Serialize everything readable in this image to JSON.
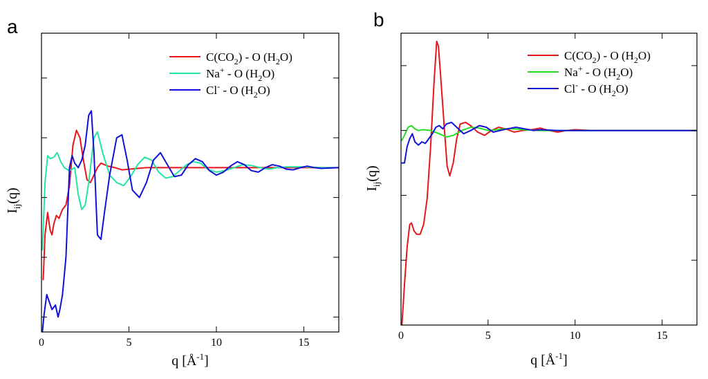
{
  "colors": {
    "red": "#e8141c",
    "green_a": "#22e6a0",
    "green_b": "#22dd22",
    "blue": "#1010d8",
    "axis": "#000000"
  },
  "chart_data": [
    {
      "panel_label": "a",
      "type": "line",
      "xlabel": {
        "main": "q [Å",
        "sup": "-1",
        "close": "]"
      },
      "ylabel": {
        "main": "I",
        "sub": "ij",
        "tail": "(q)"
      },
      "xlim": [
        0,
        17
      ],
      "ylim": [
        -1.1,
        0.9
      ],
      "xticks": [
        0,
        5,
        10,
        15
      ],
      "xtick_labels": [
        "0",
        "5",
        "10",
        "15"
      ],
      "yticks": [
        -1.0,
        -0.6,
        -0.2,
        0.2,
        0.6
      ],
      "grid": false,
      "legend_position": "top-right",
      "series": [
        {
          "name": "C(CO2) - O (H2O)",
          "legend": [
            [
              "C(CO",
              ""
            ],
            [
              "2",
              "sub"
            ],
            [
              ") - O (H",
              ""
            ],
            [
              "2",
              "sub"
            ],
            [
              "O)",
              ""
            ]
          ],
          "color": "#e8141c",
          "points": [
            [
              0.1,
              -0.75
            ],
            [
              0.2,
              -0.45
            ],
            [
              0.35,
              -0.3
            ],
            [
              0.5,
              -0.42
            ],
            [
              0.6,
              -0.45
            ],
            [
              0.7,
              -0.38
            ],
            [
              0.85,
              -0.32
            ],
            [
              1.0,
              -0.34
            ],
            [
              1.2,
              -0.28
            ],
            [
              1.4,
              -0.25
            ],
            [
              1.6,
              -0.12
            ],
            [
              1.8,
              0.15
            ],
            [
              2.0,
              0.25
            ],
            [
              2.2,
              0.2
            ],
            [
              2.4,
              0.05
            ],
            [
              2.6,
              -0.08
            ],
            [
              2.8,
              -0.1
            ],
            [
              3.0,
              -0.05
            ],
            [
              3.2,
              0.0
            ],
            [
              3.4,
              0.03
            ],
            [
              3.6,
              0.02
            ],
            [
              3.8,
              0.01
            ],
            [
              4.2,
              0.0
            ],
            [
              4.6,
              -0.015
            ],
            [
              5.0,
              -0.01
            ],
            [
              6.0,
              0.0
            ],
            [
              8.0,
              0.0
            ],
            [
              10.0,
              0.0
            ],
            [
              12.0,
              0.0
            ],
            [
              17.0,
              0.0
            ]
          ]
        },
        {
          "name": "Na+ - O (H2O)",
          "legend": [
            [
              "Na",
              ""
            ],
            [
              "+",
              "sup"
            ],
            [
              " - O (H",
              ""
            ],
            [
              "2",
              "sub"
            ],
            [
              "O)",
              ""
            ]
          ],
          "color": "#22e6a0",
          "points": [
            [
              0.05,
              -0.55
            ],
            [
              0.2,
              -0.1
            ],
            [
              0.35,
              0.08
            ],
            [
              0.5,
              0.06
            ],
            [
              0.7,
              0.07
            ],
            [
              0.9,
              0.1
            ],
            [
              1.1,
              0.04
            ],
            [
              1.3,
              0.0
            ],
            [
              1.6,
              -0.02
            ],
            [
              1.9,
              0.0
            ],
            [
              2.1,
              -0.18
            ],
            [
              2.3,
              -0.28
            ],
            [
              2.5,
              -0.25
            ],
            [
              2.7,
              -0.1
            ],
            [
              3.0,
              0.2
            ],
            [
              3.2,
              0.24
            ],
            [
              3.5,
              0.1
            ],
            [
              3.9,
              -0.05
            ],
            [
              4.3,
              -0.1
            ],
            [
              4.7,
              -0.12
            ],
            [
              5.1,
              -0.06
            ],
            [
              5.5,
              0.02
            ],
            [
              5.9,
              0.07
            ],
            [
              6.3,
              0.05
            ],
            [
              6.7,
              -0.03
            ],
            [
              7.1,
              -0.07
            ],
            [
              7.5,
              -0.06
            ],
            [
              7.9,
              -0.02
            ],
            [
              8.3,
              0.02
            ],
            [
              8.7,
              0.04
            ],
            [
              9.1,
              0.03
            ],
            [
              9.5,
              -0.01
            ],
            [
              10.0,
              -0.03
            ],
            [
              10.5,
              -0.02
            ],
            [
              11.0,
              0.0
            ],
            [
              11.5,
              0.02
            ],
            [
              12.0,
              0.015
            ],
            [
              12.5,
              0.0
            ],
            [
              13.0,
              -0.01
            ],
            [
              13.5,
              0.0
            ],
            [
              14.0,
              0.005
            ],
            [
              15.0,
              0.005
            ],
            [
              16.0,
              0.0
            ],
            [
              17.0,
              0.0
            ]
          ]
        },
        {
          "name": "Cl- - O (H2O)",
          "legend": [
            [
              "Cl",
              ""
            ],
            [
              "-",
              "sup"
            ],
            [
              " - O (H",
              ""
            ],
            [
              "2",
              "sub"
            ],
            [
              "O)",
              ""
            ]
          ],
          "color": "#1010d8",
          "points": [
            [
              0.05,
              -1.1
            ],
            [
              0.15,
              -0.98
            ],
            [
              0.3,
              -0.85
            ],
            [
              0.45,
              -0.9
            ],
            [
              0.6,
              -0.95
            ],
            [
              0.8,
              -0.92
            ],
            [
              0.95,
              -1.0
            ],
            [
              1.05,
              -0.95
            ],
            [
              1.2,
              -0.85
            ],
            [
              1.4,
              -0.6
            ],
            [
              1.6,
              0.0
            ],
            [
              1.75,
              0.08
            ],
            [
              1.9,
              0.03
            ],
            [
              2.1,
              0.0
            ],
            [
              2.3,
              0.05
            ],
            [
              2.5,
              0.15
            ],
            [
              2.7,
              0.35
            ],
            [
              2.85,
              0.38
            ],
            [
              3.0,
              0.1
            ],
            [
              3.2,
              -0.45
            ],
            [
              3.4,
              -0.48
            ],
            [
              3.6,
              -0.3
            ],
            [
              3.9,
              -0.05
            ],
            [
              4.3,
              0.2
            ],
            [
              4.6,
              0.22
            ],
            [
              4.9,
              0.05
            ],
            [
              5.2,
              -0.15
            ],
            [
              5.6,
              -0.2
            ],
            [
              6.0,
              -0.1
            ],
            [
              6.4,
              0.05
            ],
            [
              6.8,
              0.1
            ],
            [
              7.2,
              0.02
            ],
            [
              7.6,
              -0.06
            ],
            [
              8.0,
              -0.05
            ],
            [
              8.4,
              0.02
            ],
            [
              8.8,
              0.06
            ],
            [
              9.2,
              0.04
            ],
            [
              9.6,
              -0.02
            ],
            [
              10.0,
              -0.05
            ],
            [
              10.4,
              -0.03
            ],
            [
              10.8,
              0.01
            ],
            [
              11.2,
              0.04
            ],
            [
              11.6,
              0.02
            ],
            [
              12.0,
              -0.02
            ],
            [
              12.4,
              -0.03
            ],
            [
              12.8,
              0.0
            ],
            [
              13.2,
              0.02
            ],
            [
              13.6,
              0.01
            ],
            [
              14.0,
              -0.01
            ],
            [
              14.4,
              -0.015
            ],
            [
              14.8,
              0.0
            ],
            [
              15.2,
              0.01
            ],
            [
              15.6,
              0.0
            ],
            [
              16.0,
              -0.005
            ],
            [
              17.0,
              0.0
            ]
          ]
        }
      ]
    },
    {
      "panel_label": "b",
      "type": "line",
      "xlabel": {
        "main": "q [Å",
        "sup": "-1",
        "close": "]"
      },
      "ylabel": {
        "main": "I",
        "sub": "ij",
        "tail": "(q)"
      },
      "xlim": [
        0,
        17
      ],
      "ylim": [
        -1.2,
        0.6
      ],
      "xticks": [
        0,
        5,
        10,
        15
      ],
      "xtick_labels": [
        "0",
        "5",
        "10",
        "15"
      ],
      "yticks": [
        -0.8,
        -0.4,
        0.0,
        0.4
      ],
      "grid": false,
      "legend_position": "top-right",
      "series": [
        {
          "name": "C(CO2) - O (H2O)",
          "legend": [
            [
              "C(CO",
              ""
            ],
            [
              "2",
              "sub"
            ],
            [
              ") - O (H",
              ""
            ],
            [
              "2",
              "sub"
            ],
            [
              "O)",
              ""
            ]
          ],
          "color": "#e8141c",
          "points": [
            [
              0.05,
              -1.2
            ],
            [
              0.2,
              -0.95
            ],
            [
              0.35,
              -0.72
            ],
            [
              0.5,
              -0.58
            ],
            [
              0.6,
              -0.57
            ],
            [
              0.75,
              -0.62
            ],
            [
              0.9,
              -0.64
            ],
            [
              1.1,
              -0.64
            ],
            [
              1.3,
              -0.58
            ],
            [
              1.5,
              -0.42
            ],
            [
              1.7,
              -0.1
            ],
            [
              1.9,
              0.3
            ],
            [
              2.05,
              0.55
            ],
            [
              2.15,
              0.52
            ],
            [
              2.3,
              0.3
            ],
            [
              2.5,
              0.0
            ],
            [
              2.65,
              -0.22
            ],
            [
              2.8,
              -0.28
            ],
            [
              3.0,
              -0.2
            ],
            [
              3.2,
              -0.05
            ],
            [
              3.4,
              0.04
            ],
            [
              3.7,
              0.05
            ],
            [
              4.0,
              0.03
            ],
            [
              4.4,
              -0.01
            ],
            [
              4.8,
              -0.03
            ],
            [
              5.2,
              0.0
            ],
            [
              5.6,
              0.02
            ],
            [
              6.0,
              0.01
            ],
            [
              6.5,
              -0.01
            ],
            [
              7.0,
              0.0
            ],
            [
              7.5,
              0.005
            ],
            [
              8.0,
              0.015
            ],
            [
              8.5,
              0.0
            ],
            [
              9.0,
              -0.01
            ],
            [
              9.5,
              0.0
            ],
            [
              10.0,
              0.005
            ],
            [
              11.0,
              0.0
            ],
            [
              17.0,
              0.0
            ]
          ]
        },
        {
          "name": "Na+ - O (H2O)",
          "legend": [
            [
              "Na",
              ""
            ],
            [
              "+",
              "sup"
            ],
            [
              " - O (H",
              ""
            ],
            [
              "2",
              "sub"
            ],
            [
              "O)",
              ""
            ]
          ],
          "color": "#22dd22",
          "points": [
            [
              0.05,
              -0.06
            ],
            [
              0.2,
              -0.03
            ],
            [
              0.4,
              0.02
            ],
            [
              0.6,
              0.03
            ],
            [
              0.8,
              0.01
            ],
            [
              1.0,
              0.0
            ],
            [
              1.3,
              0.005
            ],
            [
              1.7,
              0.0
            ],
            [
              2.2,
              -0.02
            ],
            [
              2.6,
              -0.04
            ],
            [
              3.0,
              -0.03
            ],
            [
              3.5,
              0.0
            ],
            [
              4.0,
              0.02
            ],
            [
              4.5,
              0.015
            ],
            [
              5.0,
              0.0
            ],
            [
              5.5,
              0.005
            ],
            [
              6.0,
              0.01
            ],
            [
              6.5,
              0.01
            ],
            [
              7.0,
              0.005
            ],
            [
              8.0,
              0.0
            ],
            [
              10.0,
              0.0
            ],
            [
              17.0,
              0.0
            ]
          ]
        },
        {
          "name": "Cl- - O (H2O)",
          "legend": [
            [
              "Cl",
              ""
            ],
            [
              "-",
              "sup"
            ],
            [
              " - O (H",
              ""
            ],
            [
              "2",
              "sub"
            ],
            [
              "O)",
              ""
            ]
          ],
          "color": "#1010d8",
          "points": [
            [
              0.05,
              -0.2
            ],
            [
              0.2,
              -0.2
            ],
            [
              0.35,
              -0.1
            ],
            [
              0.5,
              -0.05
            ],
            [
              0.65,
              -0.02
            ],
            [
              0.8,
              -0.07
            ],
            [
              1.0,
              -0.09
            ],
            [
              1.2,
              -0.07
            ],
            [
              1.4,
              -0.08
            ],
            [
              1.6,
              -0.05
            ],
            [
              1.8,
              -0.02
            ],
            [
              2.0,
              0.02
            ],
            [
              2.2,
              0.03
            ],
            [
              2.4,
              0.01
            ],
            [
              2.6,
              0.04
            ],
            [
              2.9,
              0.05
            ],
            [
              3.2,
              0.02
            ],
            [
              3.6,
              -0.02
            ],
            [
              4.0,
              0.0
            ],
            [
              4.5,
              0.03
            ],
            [
              4.9,
              0.02
            ],
            [
              5.3,
              -0.01
            ],
            [
              5.7,
              0.0
            ],
            [
              6.1,
              0.01
            ],
            [
              6.6,
              0.02
            ],
            [
              7.1,
              0.01
            ],
            [
              7.6,
              0.0
            ],
            [
              8.0,
              0.005
            ],
            [
              9.0,
              0.0
            ],
            [
              17.0,
              0.0
            ]
          ]
        }
      ]
    }
  ]
}
